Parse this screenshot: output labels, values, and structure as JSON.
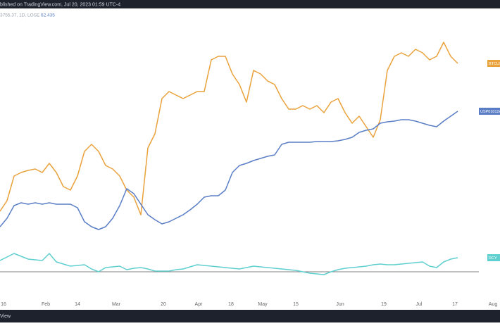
{
  "header": {
    "published": "blished on TradingView.com, Jul 20, 2023 01:59 UTC-4",
    "legend_info": "3755.37, 1D, LOSE",
    "legend_value": "62.435"
  },
  "footer": {
    "brand": "View"
  },
  "chart_data": {
    "type": "line",
    "categories": [
      null,
      null,
      null,
      null,
      null,
      null,
      null,
      null,
      null,
      null,
      null,
      null,
      null,
      null,
      null,
      null,
      null,
      null,
      null,
      null,
      null,
      null,
      null,
      null,
      null,
      null,
      null,
      null,
      null,
      null,
      null,
      null,
      null,
      null,
      null,
      null,
      null,
      null,
      null,
      null,
      null,
      null,
      null,
      null,
      null,
      null,
      null,
      null,
      null,
      null,
      null,
      null,
      null,
      null,
      null,
      null,
      null,
      null,
      null,
      null,
      null,
      null,
      null,
      null,
      null,
      null
    ],
    "xlim": [
      0,
      70.5
    ],
    "xticks": [
      {
        "value": 0.5,
        "label": "16"
      },
      {
        "value": 6.5,
        "label": "Feb"
      },
      {
        "value": 11,
        "label": "14"
      },
      {
        "value": 16.5,
        "label": "Mar"
      },
      {
        "value": 23.2,
        "label": "20"
      },
      {
        "value": 28.2,
        "label": "Apr"
      },
      {
        "value": 32.8,
        "label": "18"
      },
      {
        "value": 37.3,
        "label": "May"
      },
      {
        "value": 42,
        "label": "15"
      },
      {
        "value": 48.3,
        "label": "Jun"
      },
      {
        "value": 54.5,
        "label": "19"
      },
      {
        "value": 59.5,
        "label": "Jul"
      },
      {
        "value": 64.6,
        "label": "17"
      },
      {
        "value": 70,
        "label": "Aug"
      }
    ],
    "ylim": [
      0,
      100
    ],
    "reference_line": 8.5,
    "series": [
      {
        "name": "BTCUSD",
        "color": "#e9a23b",
        "values": [
          30,
          33.75,
          42.5,
          43.75,
          44.5,
          45,
          43.75,
          47,
          43.75,
          38.75,
          37.5,
          42.5,
          51.25,
          53.75,
          51.25,
          46.25,
          45,
          42.5,
          37.5,
          35,
          28.75,
          52.5,
          57.5,
          70,
          72.5,
          71.25,
          70,
          71.25,
          72.5,
          72.5,
          83.75,
          85,
          85,
          78.75,
          75,
          68.75,
          80,
          78.75,
          76.25,
          75,
          70,
          66.25,
          66.25,
          67.5,
          66.25,
          67.5,
          65,
          68.75,
          70,
          65,
          61.25,
          63.75,
          60,
          56.25,
          62.5,
          80,
          85,
          86.25,
          85,
          87.5,
          86.25,
          83.75,
          85,
          90,
          85,
          82.5
        ]
      },
      {
        "name": "USP01012AT38",
        "color": "#5a7ec6",
        "values": [
          24.5,
          27.5,
          32,
          33,
          32.5,
          33,
          32.5,
          33,
          32.5,
          32.5,
          32.5,
          31.25,
          26.25,
          24.5,
          23.5,
          24.5,
          27.5,
          32,
          38,
          36.25,
          32.5,
          28.75,
          27,
          25.5,
          26.25,
          27.5,
          28.75,
          30.5,
          32.5,
          35,
          35.5,
          35.5,
          37.5,
          43.75,
          46.25,
          47,
          48,
          48.75,
          49.5,
          50,
          53.75,
          54.5,
          54.5,
          54.5,
          54.5,
          54.75,
          54.75,
          54.75,
          55,
          55.5,
          56.25,
          58,
          58.75,
          59.25,
          61.25,
          61.75,
          62,
          62.5,
          62.5,
          62,
          61.25,
          60.5,
          60,
          62,
          63.75,
          65.5
        ]
      },
      {
        "name": "RCY",
        "color": "#5fcfd0",
        "values": [
          12.5,
          13.75,
          15,
          14,
          13,
          12.75,
          12.5,
          15,
          12,
          11.25,
          10.5,
          10.75,
          11,
          9.5,
          8.5,
          10,
          10.25,
          10.5,
          9.25,
          9.75,
          10,
          9.5,
          8.75,
          8.75,
          8.75,
          9.25,
          9.5,
          10.25,
          11,
          10.75,
          10.5,
          10.25,
          10,
          9.75,
          9.5,
          10,
          10.5,
          10.25,
          10,
          9.75,
          9.5,
          9.25,
          9,
          8.5,
          8,
          7.75,
          7.5,
          8.5,
          9.25,
          9.75,
          10,
          10.25,
          10.5,
          11,
          11.25,
          11,
          11,
          11.25,
          11.5,
          11.75,
          12,
          10.5,
          10,
          12,
          13,
          13.5
        ]
      }
    ]
  }
}
